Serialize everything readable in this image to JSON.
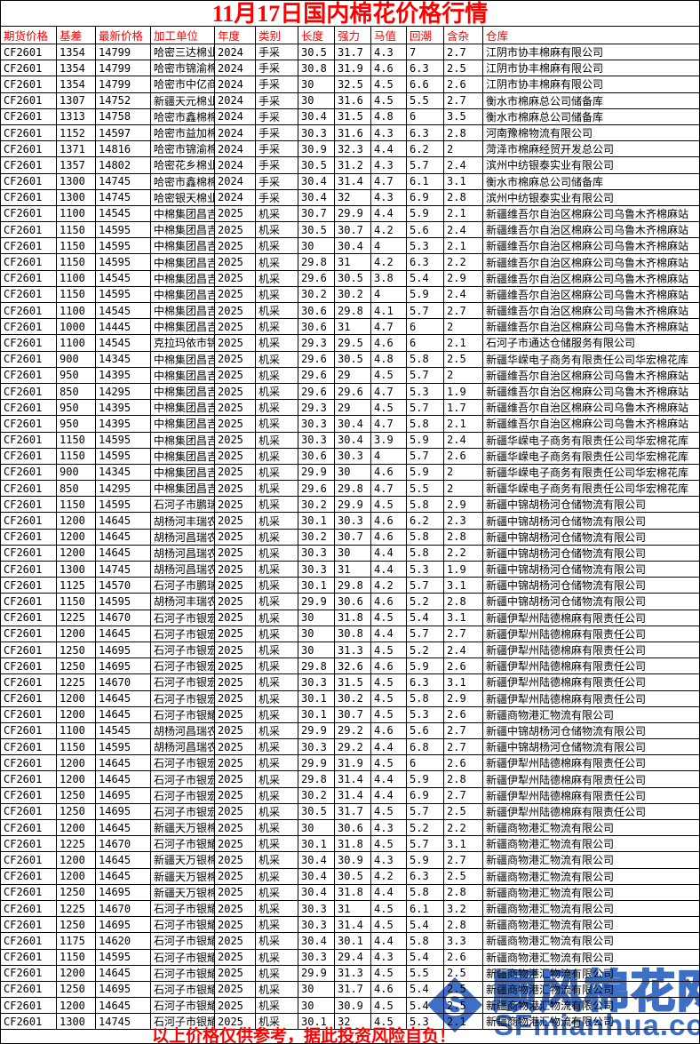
{
  "title": "11月17日国内棉花价格行情",
  "footer": {
    "disclaimer": "以上价格仅供参考，据此投资风险自负！"
  },
  "watermark": {
    "logo_letter": "S",
    "site_name": "顺风棉花网",
    "site_url": "SFmianhua.com"
  },
  "colors": {
    "accent_red": "#ff0000",
    "watermark_blue": "#3d6fc6"
  },
  "table": {
    "columns": [
      "期货价格",
      "基差",
      "最新价格",
      "加工单位",
      "年度",
      "类别",
      "长度",
      "强力",
      "马值",
      "回潮",
      "含杂",
      "仓库"
    ],
    "rows": [
      [
        "CF2601",
        "1354",
        "14799",
        "哈密三达棉业",
        "2024",
        "手采",
        "30.5",
        "31.7",
        "4.3",
        "7",
        "2.7",
        "江阴市协丰棉麻有限公司"
      ],
      [
        "CF2601",
        "1354",
        "14799",
        "哈密市锦渝棉",
        "2024",
        "手采",
        "30.8",
        "31.9",
        "4.6",
        "6.3",
        "2.5",
        "江阴市协丰棉麻有限公司"
      ],
      [
        "CF2601",
        "1354",
        "14799",
        "哈密市中亿商",
        "2024",
        "手采",
        "30",
        "32.5",
        "4.5",
        "6.6",
        "2.6",
        "江阴市协丰棉麻有限公司"
      ],
      [
        "CF2601",
        "1307",
        "14752",
        "新疆天元棉业",
        "2024",
        "手采",
        "30",
        "31.6",
        "4.5",
        "5.5",
        "2.7",
        "衡水市棉麻总公司储备库"
      ],
      [
        "CF2601",
        "1313",
        "14758",
        "哈密市鑫棉棉",
        "2024",
        "手采",
        "30.4",
        "31.5",
        "4.8",
        "6",
        "3.5",
        "衡水市棉麻总公司储备库"
      ],
      [
        "CF2601",
        "1152",
        "14597",
        "哈密市益加棉",
        "2024",
        "手采",
        "30.3",
        "31.6",
        "4.3",
        "6.3",
        "2.8",
        "河南豫棉物流有限公司"
      ],
      [
        "CF2601",
        "1371",
        "14816",
        "哈密市锦渝棉",
        "2024",
        "手采",
        "30.9",
        "32.3",
        "4.4",
        "6.2",
        "2",
        "菏泽市棉麻经贸开发总公司"
      ],
      [
        "CF2601",
        "1357",
        "14802",
        "哈密花乡棉业",
        "2024",
        "手采",
        "30.5",
        "31.2",
        "4.3",
        "5.7",
        "2.4",
        "滨州中纺银泰实业有限公司"
      ],
      [
        "CF2601",
        "1300",
        "14745",
        "哈密市鑫棉棉",
        "2024",
        "手采",
        "30.4",
        "31.4",
        "4.7",
        "6.1",
        "3.1",
        "衡水市棉麻总公司储备库"
      ],
      [
        "CF2601",
        "1300",
        "14745",
        "哈密银天棉业",
        "2024",
        "手采",
        "30.4",
        "32",
        "4.3",
        "6.9",
        "2.8",
        "滨州中纺银泰实业有限公司"
      ],
      [
        "CF2601",
        "1100",
        "14545",
        "中棉集团昌吉",
        "2025",
        "机采",
        "30.7",
        "29.9",
        "4.4",
        "5.9",
        "2.1",
        "新疆维吾尔自治区棉麻公司乌鲁木齐棉麻站"
      ],
      [
        "CF2601",
        "1150",
        "14595",
        "中棉集团昌吉",
        "2025",
        "机采",
        "30.5",
        "30.7",
        "4.2",
        "5.6",
        "2.4",
        "新疆维吾尔自治区棉麻公司乌鲁木齐棉麻站"
      ],
      [
        "CF2601",
        "1150",
        "14595",
        "中棉集团昌吉",
        "2025",
        "机采",
        "30",
        "30.4",
        "4",
        "5.3",
        "2.1",
        "新疆维吾尔自治区棉麻公司乌鲁木齐棉麻站"
      ],
      [
        "CF2601",
        "1150",
        "14595",
        "中棉集团昌吉",
        "2025",
        "机采",
        "29.8",
        "31",
        "4.2",
        "6.3",
        "2.2",
        "新疆维吾尔自治区棉麻公司乌鲁木齐棉麻站"
      ],
      [
        "CF2601",
        "1100",
        "14545",
        "中棉集团昌吉",
        "2025",
        "机采",
        "29.6",
        "30.5",
        "3.8",
        "5.4",
        "2.9",
        "新疆维吾尔自治区棉麻公司乌鲁木齐棉麻站"
      ],
      [
        "CF2601",
        "1150",
        "14595",
        "中棉集团昌吉",
        "2025",
        "机采",
        "30.2",
        "30.2",
        "4",
        "5.9",
        "2.4",
        "新疆维吾尔自治区棉麻公司乌鲁木齐棉麻站"
      ],
      [
        "CF2601",
        "1100",
        "14545",
        "中棉集团昌吉",
        "2025",
        "机采",
        "30.6",
        "29.8",
        "4.1",
        "5.7",
        "2.7",
        "新疆维吾尔自治区棉麻公司乌鲁木齐棉麻站"
      ],
      [
        "CF2601",
        "1000",
        "14445",
        "中棉集团昌吉",
        "2025",
        "机采",
        "30.6",
        "31",
        "4.7",
        "6",
        "2",
        "新疆维吾尔自治区棉麻公司乌鲁木齐棉麻站"
      ],
      [
        "CF2601",
        "1100",
        "14545",
        "克拉玛依市锦",
        "2025",
        "机采",
        "29.3",
        "29.5",
        "4.6",
        "6",
        "2.1",
        "石河子市通达仓储服务有限公司"
      ],
      [
        "CF2601",
        "900",
        "14345",
        "中棉集团昌吉",
        "2025",
        "机采",
        "29.6",
        "30.5",
        "4.8",
        "5.8",
        "2.5",
        "新疆华嵘电子商务有限责任公司华宏棉花库"
      ],
      [
        "CF2601",
        "950",
        "14395",
        "中棉集团昌吉",
        "2025",
        "机采",
        "29.6",
        "29",
        "4.5",
        "5.7",
        "2",
        "新疆维吾尔自治区棉麻公司乌鲁木齐棉麻站"
      ],
      [
        "CF2601",
        "850",
        "14295",
        "中棉集团昌吉",
        "2025",
        "机采",
        "29.6",
        "29.6",
        "4.7",
        "5.3",
        "1.9",
        "新疆维吾尔自治区棉麻公司乌鲁木齐棉麻站"
      ],
      [
        "CF2601",
        "950",
        "14395",
        "中棉集团昌吉",
        "2025",
        "机采",
        "29.3",
        "29",
        "4.5",
        "5.7",
        "1.7",
        "新疆维吾尔自治区棉麻公司乌鲁木齐棉麻站"
      ],
      [
        "CF2601",
        "950",
        "14395",
        "中棉集团昌吉",
        "2025",
        "机采",
        "30.3",
        "30.4",
        "4.7",
        "5.8",
        "2.1",
        "新疆维吾尔自治区棉麻公司乌鲁木齐棉麻站"
      ],
      [
        "CF2601",
        "1150",
        "14595",
        "中棉集团昌吉",
        "2025",
        "机采",
        "30.3",
        "30.4",
        "3.9",
        "5.9",
        "2.4",
        "新疆华嵘电子商务有限责任公司华宏棉花库"
      ],
      [
        "CF2601",
        "1150",
        "14595",
        "中棉集团昌吉",
        "2025",
        "机采",
        "30.6",
        "30.3",
        "4",
        "5.7",
        "2.6",
        "新疆华嵘电子商务有限责任公司华宏棉花库"
      ],
      [
        "CF2601",
        "900",
        "14345",
        "中棉集团昌吉",
        "2025",
        "机采",
        "29.9",
        "30",
        "4.6",
        "5.9",
        "2",
        "新疆华嵘电子商务有限责任公司华宏棉花库"
      ],
      [
        "CF2601",
        "850",
        "14295",
        "中棉集团昌吉",
        "2025",
        "机采",
        "29.6",
        "29.8",
        "4.7",
        "5.5",
        "2",
        "新疆华嵘电子商务有限责任公司华宏棉花库"
      ],
      [
        "CF2601",
        "1150",
        "14595",
        "石河子市鹏瑞",
        "2025",
        "机采",
        "30.2",
        "29.9",
        "4.5",
        "5.8",
        "2.9",
        "新疆中锦胡杨河仓储物流有限公司"
      ],
      [
        "CF2601",
        "1200",
        "14645",
        "胡杨河丰瑞农",
        "2025",
        "机采",
        "30.1",
        "30.3",
        "4.6",
        "6.2",
        "2.3",
        "新疆中锦胡杨河仓储物流有限公司"
      ],
      [
        "CF2601",
        "1200",
        "14645",
        "胡杨河昌瑞农",
        "2025",
        "机采",
        "30.2",
        "30.7",
        "4.6",
        "5.8",
        "2.8",
        "新疆中锦胡杨河仓储物流有限公司"
      ],
      [
        "CF2601",
        "1200",
        "14645",
        "胡杨河昌瑞农",
        "2025",
        "机采",
        "30.3",
        "30",
        "4.4",
        "5.8",
        "2.2",
        "新疆中锦胡杨河仓储物流有限公司"
      ],
      [
        "CF2601",
        "1300",
        "14745",
        "胡杨河昌瑞农",
        "2025",
        "机采",
        "30.3",
        "31",
        "4.4",
        "5.3",
        "1.9",
        "新疆中锦胡杨河仓储物流有限公司"
      ],
      [
        "CF2601",
        "1125",
        "14570",
        "石河子市鹏瑞",
        "2025",
        "机采",
        "30.1",
        "29.8",
        "4.2",
        "5.7",
        "3.1",
        "新疆中锦胡杨河仓储物流有限公司"
      ],
      [
        "CF2601",
        "1150",
        "14595",
        "胡杨河丰瑞农",
        "2025",
        "机采",
        "29.9",
        "30.6",
        "4.6",
        "5.2",
        "2.8",
        "新疆中锦胡杨河仓储物流有限公司"
      ],
      [
        "CF2601",
        "1225",
        "14670",
        "石河子市银宏",
        "2025",
        "机采",
        "30",
        "31.8",
        "4.5",
        "5.4",
        "3.1",
        "新疆伊犁州陆德棉麻有限责任公司"
      ],
      [
        "CF2601",
        "1200",
        "14645",
        "石河子市银宏",
        "2025",
        "机采",
        "30",
        "30.8",
        "4.4",
        "5.7",
        "2.7",
        "新疆伊犁州陆德棉麻有限责任公司"
      ],
      [
        "CF2601",
        "1250",
        "14695",
        "石河子市银宏",
        "2025",
        "机采",
        "30",
        "31.3",
        "4.5",
        "5.2",
        "2.4",
        "新疆伊犁州陆德棉麻有限责任公司"
      ],
      [
        "CF2601",
        "1250",
        "14695",
        "石河子市银宏",
        "2025",
        "机采",
        "29.8",
        "32.6",
        "4.6",
        "5.9",
        "2.6",
        "新疆伊犁州陆德棉麻有限责任公司"
      ],
      [
        "CF2601",
        "1225",
        "14670",
        "石河子市银宏",
        "2025",
        "机采",
        "30.3",
        "31.5",
        "4.5",
        "6.3",
        "3.1",
        "新疆伊犁州陆德棉麻有限责任公司"
      ],
      [
        "CF2601",
        "1200",
        "14645",
        "石河子市银宏",
        "2025",
        "机采",
        "30.1",
        "30.2",
        "4.5",
        "5.8",
        "2.9",
        "新疆伊犁州陆德棉麻有限责任公司"
      ],
      [
        "CF2601",
        "1200",
        "14645",
        "石河子市银耀",
        "2025",
        "机采",
        "30.1",
        "30.7",
        "4.5",
        "5.3",
        "2.6",
        "新疆商物港汇物流有限公司"
      ],
      [
        "CF2601",
        "1100",
        "14545",
        "胡杨河昌瑞农",
        "2025",
        "机采",
        "29.9",
        "29.2",
        "4.6",
        "5.6",
        "2.7",
        "新疆中锦胡杨河仓储物流有限公司"
      ],
      [
        "CF2601",
        "1150",
        "14595",
        "胡杨河昌瑞农",
        "2025",
        "机采",
        "30.3",
        "29.2",
        "4.4",
        "6.8",
        "2.7",
        "新疆中锦胡杨河仓储物流有限公司"
      ],
      [
        "CF2601",
        "1200",
        "14645",
        "石河子市银宏",
        "2025",
        "机采",
        "29.9",
        "31.9",
        "4.5",
        "6",
        "2.6",
        "新疆伊犁州陆德棉麻有限责任公司"
      ],
      [
        "CF2601",
        "1200",
        "14645",
        "石河子市银宏",
        "2025",
        "机采",
        "29.8",
        "31.4",
        "4.4",
        "5.9",
        "2.8",
        "新疆伊犁州陆德棉麻有限责任公司"
      ],
      [
        "CF2601",
        "1250",
        "14695",
        "石河子市银宏",
        "2025",
        "机采",
        "30.2",
        "31.4",
        "4.4",
        "6.9",
        "2.7",
        "新疆伊犁州陆德棉麻有限责任公司"
      ],
      [
        "CF2601",
        "1250",
        "14695",
        "石河子市银宏",
        "2025",
        "机采",
        "30.5",
        "31.7",
        "4.5",
        "5.7",
        "2.5",
        "新疆伊犁州陆德棉麻有限责任公司"
      ],
      [
        "CF2601",
        "1200",
        "14645",
        "新疆天万银棉",
        "2025",
        "机采",
        "30",
        "30.6",
        "4.3",
        "5.2",
        "2.2",
        "新疆商物港汇物流有限公司"
      ],
      [
        "CF2601",
        "1225",
        "14670",
        "石河子市银耀",
        "2025",
        "机采",
        "30.1",
        "31.8",
        "4.5",
        "5.7",
        "3.1",
        "新疆商物港汇物流有限公司"
      ],
      [
        "CF2601",
        "1200",
        "14645",
        "新疆天万银棉",
        "2025",
        "机采",
        "30.4",
        "30.9",
        "4.3",
        "5.9",
        "2.7",
        "新疆商物港汇物流有限公司"
      ],
      [
        "CF2601",
        "1200",
        "14645",
        "新疆天万银棉",
        "2025",
        "机采",
        "30.4",
        "30.5",
        "4.2",
        "6.3",
        "2.5",
        "新疆商物港汇物流有限公司"
      ],
      [
        "CF2601",
        "1250",
        "14695",
        "新疆天万银棉",
        "2025",
        "机采",
        "30.4",
        "31.8",
        "4.4",
        "5.8",
        "2.8",
        "新疆商物港汇物流有限公司"
      ],
      [
        "CF2601",
        "1225",
        "14670",
        "石河子市银耀",
        "2025",
        "机采",
        "30.3",
        "31",
        "4.5",
        "6.1",
        "3.2",
        "新疆商物港汇物流有限公司"
      ],
      [
        "CF2601",
        "1250",
        "14695",
        "石河子市银耀",
        "2025",
        "机采",
        "30.3",
        "31.4",
        "4.5",
        "5.4",
        "2.8",
        "新疆商物港汇物流有限公司"
      ],
      [
        "CF2601",
        "1175",
        "14620",
        "石河子市银耀",
        "2025",
        "机采",
        "30.4",
        "30.1",
        "4.4",
        "5.8",
        "3.3",
        "新疆商物港汇物流有限公司"
      ],
      [
        "CF2601",
        "1150",
        "14595",
        "石河子市银耀",
        "2025",
        "机采",
        "30.3",
        "29.4",
        "4.3",
        "5.4",
        "2.6",
        "新疆商物港汇物流有限公司"
      ],
      [
        "CF2601",
        "1200",
        "14645",
        "石河子市银耀",
        "2025",
        "机采",
        "29.9",
        "31.3",
        "4.5",
        "5.5",
        "2.5",
        "新疆商物港汇物流有限公司"
      ],
      [
        "CF2601",
        "1250",
        "14695",
        "石河子市银耀",
        "2025",
        "机采",
        "30",
        "31.7",
        "4.6",
        "5.4",
        "2.5",
        "新疆商物港汇物流有限公司"
      ],
      [
        "CF2601",
        "1200",
        "14645",
        "石河子市银耀",
        "2025",
        "机采",
        "30",
        "30.9",
        "4.5",
        "5.4",
        "2.5",
        "新疆商物港汇物流有限公司"
      ],
      [
        "CF2601",
        "1300",
        "14745",
        "石河子市银耀",
        "2025",
        "机采",
        "30.1",
        "32",
        "4.5",
        "5.3",
        "2.1",
        "新疆商物港汇物流有限公司"
      ]
    ]
  }
}
